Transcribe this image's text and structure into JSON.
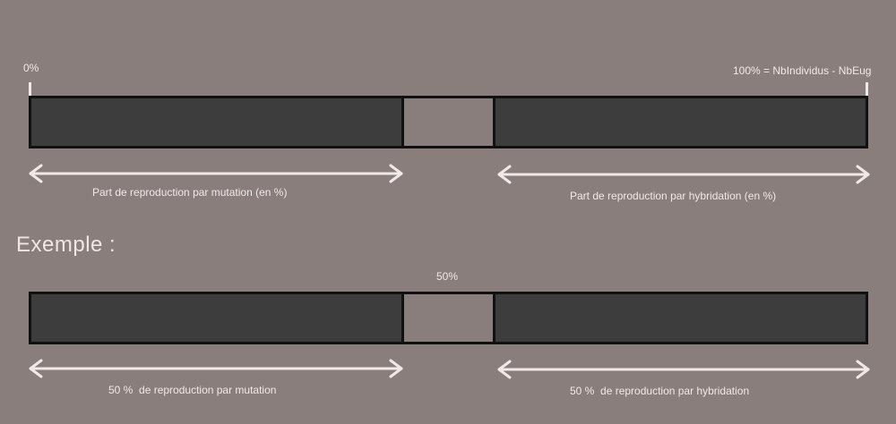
{
  "top": {
    "start_label": "0%",
    "end_label": "100% = NbIndividus - NbEug",
    "left_caption": "Part de reproduction par mutation (en %)",
    "right_caption": "Part de reproduction par hybridation (en %)"
  },
  "example": {
    "heading": "Exemple :",
    "split_label": "50%",
    "split_value": 50,
    "left_caption": "50 %  de reproduction par mutation",
    "right_caption": "50 %  de reproduction par hybridation"
  },
  "colors": {
    "background": "#8a7e7d",
    "bar_fill": "#3d3d3d",
    "bar_border": "#111111",
    "text_and_arrows": "#f1e8e8"
  }
}
